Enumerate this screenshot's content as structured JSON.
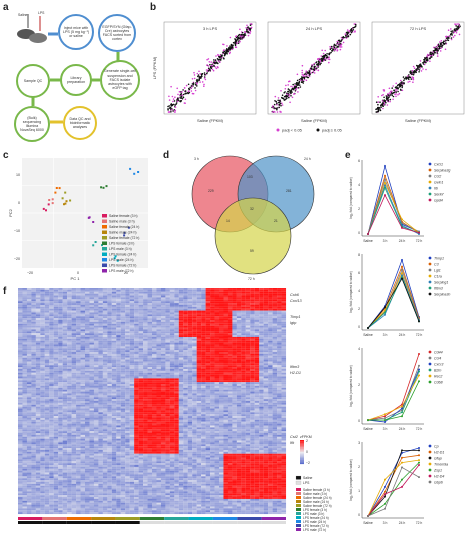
{
  "panels": {
    "a": "a",
    "b": "b",
    "c": "c",
    "d": "d",
    "e": "e",
    "f": "f"
  },
  "panel_a": {
    "mouse_labels": [
      "Saline",
      "LPS"
    ],
    "steps": [
      {
        "text": "Inject mice with LPS (5 mg kg⁻¹) or saline",
        "color": "blue"
      },
      {
        "text": "EGFP/SYN (Gfap-Cre) astrocytes FACS sorted from cortex",
        "color": "blue"
      },
      {
        "text": "Sample QC",
        "color": "green"
      },
      {
        "text": "Library preparation",
        "color": "green"
      },
      {
        "text": "Generate single-cell suspension and FACS isolate astrocytes with eGFP tag",
        "color": "green"
      },
      {
        "text": "(Bulk) sequencing Illumina NovaSeq 6000",
        "color": "green"
      },
      {
        "text": "Data QC and bioinformatic analyses",
        "color": "yellow"
      }
    ]
  },
  "panel_b": {
    "titles": [
      "3 h LPS",
      "24 h LPS",
      "72 h LPS"
    ],
    "xlabel": "Saline (FPKM)",
    "ylabel": "LPS (FPKM)",
    "legend": [
      {
        "label": "padj < 0.05",
        "color": "#d63fd0"
      },
      {
        "label": "padj ≥ 0.05",
        "color": "#111111"
      }
    ]
  },
  "panel_c": {
    "xlabel": "PC 1",
    "ylabel": "PC2",
    "xticks": [
      "−20",
      "0",
      "20"
    ],
    "yticks": [
      "10",
      "0",
      "−10",
      "−20"
    ],
    "legend": [
      {
        "label": "Saline female (3 h)",
        "color": "#d81b60"
      },
      {
        "label": "Saline male (3 h)",
        "color": "#e57373"
      },
      {
        "label": "Saline female (24 h)",
        "color": "#ef6c00"
      },
      {
        "label": "Saline male (24 h)",
        "color": "#b8860b"
      },
      {
        "label": "Saline female (72 h)",
        "color": "#9e9d24"
      },
      {
        "label": "LPS female (3 h)",
        "color": "#2e7d32"
      },
      {
        "label": "LPS male (3 h)",
        "color": "#26a69a"
      },
      {
        "label": "LPS female (24 h)",
        "color": "#00acc1"
      },
      {
        "label": "LPS male (24 h)",
        "color": "#1e88e5"
      },
      {
        "label": "LPS female (72 h)",
        "color": "#3949ab"
      },
      {
        "label": "LPS male (72 h)",
        "color": "#8e24aa"
      }
    ]
  },
  "panel_d": {
    "labels": [
      "3 h",
      "24 h",
      "72 h"
    ],
    "counts": [
      "229",
      "103",
      "281",
      "14",
      "32",
      "21",
      "59"
    ],
    "colors": [
      "#e85d6a",
      "#4f93c8",
      "#d4d44a"
    ]
  },
  "panel_e": {
    "ylabel": "log₂ fold (compared to saline)",
    "x": [
      "Saline",
      "3 h",
      "24 h",
      "72 h"
    ],
    "subplots": [
      {
        "genes": [
          {
            "name": "Cxcl1",
            "color": "#1f3fbf",
            "values": [
              0,
              5.6,
              0.8,
              0.2
            ]
          },
          {
            "name": "Serpina3g",
            "color": "#d95f02",
            "values": [
              0,
              4.8,
              1.0,
              0.1
            ]
          },
          {
            "name": "Ccl2",
            "color": "#7a7a7a",
            "values": [
              0,
              4.5,
              0.9,
              0.2
            ]
          },
          {
            "name": "Gvin1",
            "color": "#e6ab02",
            "values": [
              0,
              4.2,
              1.2,
              0.1
            ]
          },
          {
            "name": "Il6",
            "color": "#2c7fb8",
            "values": [
              0,
              4.0,
              0.7,
              0.0
            ]
          },
          {
            "name": "Serinf",
            "color": "#1b9e77",
            "values": [
              0,
              3.8,
              0.6,
              0.1
            ]
          },
          {
            "name": "Gpd4",
            "color": "#c2185b",
            "values": [
              0,
              3.2,
              0.5,
              0.1
            ]
          }
        ],
        "yticks": [
          "6",
          "4",
          "2",
          "0"
        ]
      },
      {
        "genes": [
          {
            "name": "Timp1",
            "color": "#1f3fbf",
            "values": [
              0,
              2.0,
              6.2,
              1.0
            ]
          },
          {
            "name": "C3",
            "color": "#d95f02",
            "values": [
              0,
              1.8,
              5.6,
              0.9
            ]
          },
          {
            "name": "Lgl1",
            "color": "#7a7a7a",
            "values": [
              0,
              1.5,
              5.3,
              0.8
            ]
          },
          {
            "name": "C1ra",
            "color": "#e6ab02",
            "values": [
              0,
              1.6,
              5.0,
              0.7
            ]
          },
          {
            "name": "Serping1",
            "color": "#2c7fb8",
            "values": [
              0,
              1.2,
              4.8,
              0.7
            ]
          },
          {
            "name": "Ifitm3",
            "color": "#1b9e77",
            "values": [
              0,
              1.4,
              4.6,
              0.6
            ]
          },
          {
            "name": "Serpina3n",
            "color": "#111111",
            "values": [
              0,
              1.9,
              4.5,
              0.6
            ]
          }
        ],
        "yticks": [
          "8",
          "6",
          "4",
          "2",
          "0"
        ]
      },
      {
        "genes": [
          {
            "name": "Cd44",
            "color": "#d62728",
            "values": [
              0,
              0.2,
              0.8,
              3.4
            ]
          },
          {
            "name": "Ccl4",
            "color": "#7a7a7a",
            "values": [
              0,
              0.1,
              0.5,
              2.8
            ]
          },
          {
            "name": "Cxcr3",
            "color": "#1f3fbf",
            "values": [
              0,
              -0.1,
              0.6,
              2.6
            ]
          },
          {
            "name": "B2m",
            "color": "#1b9e77",
            "values": [
              0,
              0.0,
              0.4,
              2.5
            ]
          },
          {
            "name": "Rec2",
            "color": "#e6ab02",
            "values": [
              0,
              0.3,
              0.7,
              2.3
            ]
          },
          {
            "name": "Cd68",
            "color": "#2ca02c",
            "values": [
              0,
              0.0,
              0.2,
              2.0
            ]
          }
        ],
        "yticks": [
          "4",
          "2",
          "0"
        ]
      },
      {
        "genes": [
          {
            "name": "Cp",
            "color": "#1f3fbf",
            "values": [
              0,
              1.2,
              2.6,
              2.8
            ]
          },
          {
            "name": "H2-D1",
            "color": "#d95f02",
            "values": [
              0,
              1.0,
              2.4,
              2.5
            ]
          },
          {
            "name": "Gfap",
            "color": "#111111",
            "values": [
              0,
              0.8,
              2.7,
              2.7
            ]
          },
          {
            "name": "Tmem9a",
            "color": "#e6ab02",
            "values": [
              0,
              1.5,
              2.2,
              2.3
            ]
          },
          {
            "name": "Zsp1",
            "color": "#2ca02c",
            "values": [
              0,
              0.5,
              1.5,
              2.2
            ]
          },
          {
            "name": "H2-D4",
            "color": "#c2185b",
            "values": [
              0,
              0.9,
              1.2,
              2.1
            ]
          },
          {
            "name": "Gbp6",
            "color": "#7a7a7a",
            "values": [
              0,
              0.3,
              2.0,
              1.6
            ]
          }
        ],
        "yticks": [
          "3",
          "2",
          "1",
          "0"
        ]
      }
    ]
  },
  "panel_f": {
    "gene_labels": [
      "Cxb6",
      "Cxcl13",
      "Timp1",
      "Igtp",
      "Ifitm3",
      "H2-D1",
      "Cst2",
      "Ifit"
    ],
    "scale_title": "zFPKM",
    "scale_ticks": [
      "2",
      "0",
      "−2"
    ],
    "legend_top": [
      {
        "label": "Saline",
        "color": "#111111"
      },
      {
        "label": "LPS",
        "color": "#e0e0e0"
      }
    ],
    "legend_bottom": [
      {
        "label": "Saline female (3 h)",
        "color": "#d81b60"
      },
      {
        "label": "Saline male (3 h)",
        "color": "#e57373"
      },
      {
        "label": "Saline female (24 h)",
        "color": "#ef6c00"
      },
      {
        "label": "Saline male (24 h)",
        "color": "#b8860b"
      },
      {
        "label": "Saline female (72 h)",
        "color": "#9e9d24"
      },
      {
        "label": "LPS female (3 h)",
        "color": "#2e7d32"
      },
      {
        "label": "LPS male (3 h)",
        "color": "#26a69a"
      },
      {
        "label": "LPS female (24 h)",
        "color": "#00acc1"
      },
      {
        "label": "LPS male (24 h)",
        "color": "#1e88e5"
      },
      {
        "label": "LPS female (72 h)",
        "color": "#3949ab"
      },
      {
        "label": "LPS male (72 h)",
        "color": "#8e24aa"
      }
    ],
    "col_bar_colors": [
      "#d81b60",
      "#e57373",
      "#ef6c00",
      "#b8860b",
      "#9e9d24",
      "#2e7d32",
      "#26a69a",
      "#00acc1",
      "#1e88e5",
      "#3949ab",
      "#8e24aa"
    ]
  }
}
